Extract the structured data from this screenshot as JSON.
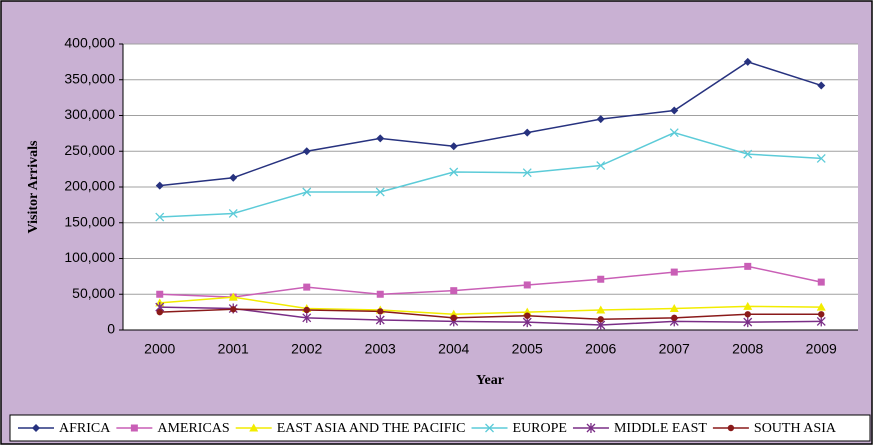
{
  "chart_data": {
    "type": "line",
    "x_label": "Year",
    "y_label": "Visitor Arrivals",
    "categories": [
      "2000",
      "2001",
      "2002",
      "2003",
      "2004",
      "2005",
      "2006",
      "2007",
      "2008",
      "2009"
    ],
    "series": [
      {
        "name": "AFRICA",
        "color": "#27327f",
        "marker": "diamond",
        "values": [
          202000,
          213000,
          250000,
          268000,
          257000,
          276000,
          295000,
          307000,
          375000,
          342000
        ]
      },
      {
        "name": "AMERICAS",
        "color": "#c95fb6",
        "marker": "square",
        "values": [
          50000,
          46000,
          60000,
          50000,
          55000,
          63000,
          71000,
          81000,
          89000,
          67000
        ]
      },
      {
        "name": "EAST ASIA AND THE PACIFIC",
        "color": "#f2ec00",
        "marker": "triangle",
        "values": [
          38000,
          46000,
          30000,
          28000,
          22000,
          25000,
          28000,
          30000,
          33000,
          32000
        ]
      },
      {
        "name": "EUROPE",
        "color": "#5ccbd8",
        "marker": "x",
        "values": [
          158000,
          163000,
          193000,
          193000,
          221000,
          220000,
          230000,
          276000,
          246000,
          240000
        ]
      },
      {
        "name": "MIDDLE EAST",
        "color": "#7a2e86",
        "marker": "star",
        "values": [
          32000,
          30000,
          17000,
          14000,
          12000,
          11000,
          7000,
          12000,
          11000,
          12000
        ]
      },
      {
        "name": "SOUTH ASIA",
        "color": "#8a1a1a",
        "marker": "circle",
        "values": [
          25000,
          29000,
          28000,
          26000,
          17000,
          20000,
          15000,
          17000,
          22000,
          22000
        ]
      }
    ],
    "ylim": [
      0,
      400000
    ],
    "yticks": [
      0,
      {
        "value": 50000,
        "label": "50,000"
      },
      {
        "value": 100000,
        "label": "100,000"
      },
      {
        "value": 150000,
        "label": "150,000"
      },
      {
        "value": 200000,
        "label": "200,000"
      },
      {
        "value": 250000,
        "label": "250,000"
      },
      {
        "value": 300000,
        "label": "300,000"
      },
      {
        "value": 350000,
        "label": "350,000"
      },
      {
        "value": 400000,
        "label": "400,000"
      }
    ],
    "grid": true,
    "legend": "bottom"
  }
}
